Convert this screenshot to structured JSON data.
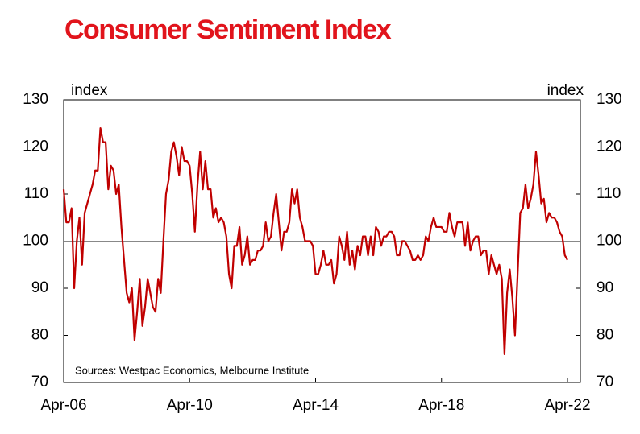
{
  "chart_data": {
    "type": "line",
    "title": "Consumer Sentiment Index",
    "ylabel": "index",
    "y2label": "index",
    "annotation": "Sources: Westpac Economics, Melbourne Institute",
    "x": [
      "2006-04",
      "2006-05",
      "2006-06",
      "2006-07",
      "2006-08",
      "2006-09",
      "2006-10",
      "2006-11",
      "2006-12",
      "2007-01",
      "2007-02",
      "2007-03",
      "2007-04",
      "2007-05",
      "2007-06",
      "2007-07",
      "2007-08",
      "2007-09",
      "2007-10",
      "2007-11",
      "2007-12",
      "2008-01",
      "2008-02",
      "2008-03",
      "2008-04",
      "2008-05",
      "2008-06",
      "2008-07",
      "2008-08",
      "2008-09",
      "2008-10",
      "2008-11",
      "2008-12",
      "2009-01",
      "2009-02",
      "2009-03",
      "2009-04",
      "2009-05",
      "2009-06",
      "2009-07",
      "2009-08",
      "2009-09",
      "2009-10",
      "2009-11",
      "2009-12",
      "2010-01",
      "2010-02",
      "2010-03",
      "2010-04",
      "2010-05",
      "2010-06",
      "2010-07",
      "2010-08",
      "2010-09",
      "2010-10",
      "2010-11",
      "2010-12",
      "2011-01",
      "2011-02",
      "2011-03",
      "2011-04",
      "2011-05",
      "2011-06",
      "2011-07",
      "2011-08",
      "2011-09",
      "2011-10",
      "2011-11",
      "2011-12",
      "2012-01",
      "2012-02",
      "2012-03",
      "2012-04",
      "2012-05",
      "2012-06",
      "2012-07",
      "2012-08",
      "2012-09",
      "2012-10",
      "2012-11",
      "2012-12",
      "2013-01",
      "2013-02",
      "2013-03",
      "2013-04",
      "2013-05",
      "2013-06",
      "2013-07",
      "2013-08",
      "2013-09",
      "2013-10",
      "2013-11",
      "2013-12",
      "2014-01",
      "2014-02",
      "2014-03",
      "2014-04",
      "2014-05",
      "2014-06",
      "2014-07",
      "2014-08",
      "2014-09",
      "2014-10",
      "2014-11",
      "2014-12",
      "2015-01",
      "2015-02",
      "2015-03",
      "2015-04",
      "2015-05",
      "2015-06",
      "2015-07",
      "2015-08",
      "2015-09",
      "2015-10",
      "2015-11",
      "2015-12",
      "2016-01",
      "2016-02",
      "2016-03",
      "2016-04",
      "2016-05",
      "2016-06",
      "2016-07",
      "2016-08",
      "2016-09",
      "2016-10",
      "2016-11",
      "2016-12",
      "2017-01",
      "2017-02",
      "2017-03",
      "2017-04",
      "2017-05",
      "2017-06",
      "2017-07",
      "2017-08",
      "2017-09",
      "2017-10",
      "2017-11",
      "2017-12",
      "2018-01",
      "2018-02",
      "2018-03",
      "2018-04",
      "2018-05",
      "2018-06",
      "2018-07",
      "2018-08",
      "2018-09",
      "2018-10",
      "2018-11",
      "2018-12",
      "2019-01",
      "2019-02",
      "2019-03",
      "2019-04",
      "2019-05",
      "2019-06",
      "2019-07",
      "2019-08",
      "2019-09",
      "2019-10",
      "2019-11",
      "2019-12",
      "2020-01",
      "2020-02",
      "2020-03",
      "2020-04",
      "2020-05",
      "2020-06",
      "2020-07",
      "2020-08",
      "2020-09",
      "2020-10",
      "2020-11",
      "2020-12",
      "2021-01",
      "2021-02",
      "2021-03",
      "2021-04",
      "2021-05",
      "2021-06",
      "2021-07",
      "2021-08",
      "2021-09",
      "2021-10",
      "2021-11",
      "2021-12",
      "2022-01",
      "2022-02",
      "2022-03",
      "2022-04"
    ],
    "series": [
      {
        "name": "Consumer Sentiment Index",
        "color": "#c00000",
        "values": [
          111,
          104,
          104,
          107,
          90,
          100,
          105,
          95,
          106,
          108,
          110,
          112,
          115,
          115,
          124,
          121,
          121,
          111,
          116,
          115,
          110,
          112,
          103,
          96,
          89,
          87,
          90,
          79,
          85,
          92,
          82,
          86,
          92,
          89,
          86,
          85,
          92,
          89,
          100,
          110,
          113,
          119,
          121,
          118,
          114,
          120,
          117,
          117,
          116,
          110,
          102,
          112,
          119,
          111,
          117,
          111,
          111,
          105,
          107,
          104,
          105,
          104,
          101,
          93,
          90,
          99,
          99,
          103,
          95,
          97,
          101,
          95,
          96,
          96,
          98,
          98,
          99,
          104,
          100,
          101,
          106,
          110,
          104,
          98,
          102,
          102,
          104,
          111,
          108,
          111,
          105,
          103,
          100,
          100,
          100,
          99,
          93,
          93,
          95,
          98,
          95,
          95,
          96,
          91,
          93,
          101,
          99,
          96,
          102,
          95,
          98,
          94,
          99,
          97,
          101,
          101,
          97,
          101,
          97,
          103,
          102,
          99,
          101,
          101,
          102,
          102,
          101,
          97,
          97,
          100,
          100,
          99,
          98,
          96,
          96,
          97,
          96,
          97,
          101,
          100,
          103,
          105,
          103,
          103,
          103,
          102,
          102,
          106,
          103,
          101,
          104,
          104,
          104,
          99,
          104,
          98,
          100,
          101,
          101,
          97,
          98,
          98,
          93,
          97,
          95,
          93,
          95,
          92,
          76,
          89,
          94,
          88,
          80,
          93,
          106,
          107,
          112,
          107,
          109,
          112,
          119,
          114,
          108,
          109,
          104,
          106,
          105,
          105,
          104,
          102,
          101,
          97,
          96
        ]
      }
    ],
    "ylim": [
      70,
      130
    ],
    "yticks": [
      70,
      80,
      90,
      100,
      110,
      120,
      130
    ],
    "y2lim": [
      70,
      130
    ],
    "y2ticks": [
      70,
      80,
      90,
      100,
      110,
      120,
      130
    ],
    "xticks": [
      {
        "value": "2006-04",
        "label": "Apr-06"
      },
      {
        "value": "2010-04",
        "label": "Apr-10"
      },
      {
        "value": "2014-04",
        "label": "Apr-14"
      },
      {
        "value": "2018-04",
        "label": "Apr-18"
      },
      {
        "value": "2022-04",
        "label": "Apr-22"
      }
    ],
    "hline": 100
  }
}
